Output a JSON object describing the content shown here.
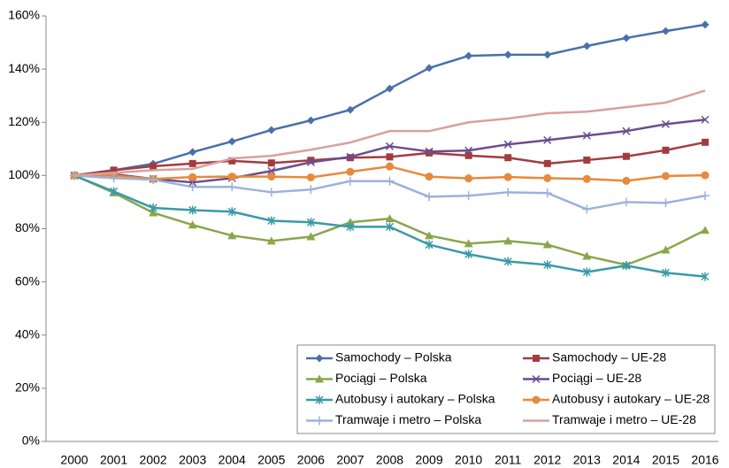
{
  "chart_data": {
    "type": "line",
    "categories": [
      "2000",
      "2001",
      "2002",
      "2003",
      "2004",
      "2005",
      "2006",
      "2007",
      "2008",
      "2009",
      "2010",
      "2011",
      "2012",
      "2013",
      "2014",
      "2015",
      "2016"
    ],
    "ylim": [
      0,
      160
    ],
    "yticks": [
      {
        "value": 0,
        "label": "0%"
      },
      {
        "value": 20,
        "label": "20%"
      },
      {
        "value": 40,
        "label": "40%"
      },
      {
        "value": 60,
        "label": "60%"
      },
      {
        "value": 80,
        "label": "80%"
      },
      {
        "value": 100,
        "label": "100%"
      },
      {
        "value": 120,
        "label": "120%"
      },
      {
        "value": 140,
        "label": "140%"
      },
      {
        "value": 160,
        "label": "160%"
      }
    ],
    "grid": false,
    "legend": "lower right",
    "series": [
      {
        "name": "Samochody – Polska",
        "color": "#4a70aa",
        "marker": "diamond",
        "values": [
          100,
          102,
          104.4,
          108.8,
          112.8,
          117.1,
          120.7,
          124.7,
          132.7,
          140.4,
          145,
          145.4,
          145.4,
          148.7,
          151.7,
          154.3,
          156.7
        ]
      },
      {
        "name": "Samochody – UE-28",
        "color": "#a33c3f",
        "marker": "square",
        "values": [
          100,
          102,
          103.5,
          104.5,
          105.5,
          104.7,
          105.7,
          106.7,
          107,
          108.5,
          107.5,
          106.7,
          104.5,
          105.8,
          107.2,
          109.5,
          112.5
        ]
      },
      {
        "name": "Pociągi – Polska",
        "color": "#8aa64b",
        "marker": "triangle",
        "values": [
          100,
          93.5,
          86,
          81.4,
          77.4,
          75.4,
          77,
          82.4,
          83.8,
          77.4,
          74.4,
          75.4,
          74,
          69.7,
          66.4,
          72,
          79.4
        ]
      },
      {
        "name": "Pociągi – UE-28",
        "color": "#6c4d8c",
        "marker": "x",
        "values": [
          100,
          100.5,
          98.7,
          97.4,
          99,
          101.7,
          105,
          107,
          111,
          109,
          109.4,
          111.7,
          113.3,
          115,
          116.7,
          119.3,
          121
        ]
      },
      {
        "name": "Autobusy i autokary – Polska",
        "color": "#3a9aa8",
        "marker": "star",
        "values": [
          100,
          94,
          87.8,
          87,
          86.4,
          83,
          82.4,
          80.7,
          80.7,
          74,
          70.4,
          67.7,
          66.4,
          63.7,
          66.1,
          63.4,
          62
        ]
      },
      {
        "name": "Autobusy i autokary – UE-28",
        "color": "#e8893b",
        "marker": "circle",
        "values": [
          100,
          100,
          98.7,
          99.4,
          99.6,
          99.6,
          99.3,
          101.4,
          103.4,
          99.6,
          98.9,
          99.4,
          99,
          98.7,
          98,
          99.8,
          100.1
        ]
      },
      {
        "name": "Tramwaje i metro – Polska",
        "color": "#9cb2d9",
        "marker": "plus",
        "values": [
          100,
          99,
          98.4,
          95.7,
          95.7,
          93.7,
          94.7,
          97.9,
          97.9,
          92,
          92.4,
          93.7,
          93.4,
          87.3,
          90,
          89.7,
          92.4
        ]
      },
      {
        "name": "Tramwaje i metro – UE-28",
        "color": "#d8a09f",
        "marker": "none",
        "values": [
          100,
          101,
          102,
          102.5,
          106.4,
          107.4,
          109.7,
          112.4,
          116.7,
          116.7,
          120,
          121.4,
          123.4,
          124,
          125.7,
          127.4,
          131.9
        ]
      }
    ]
  }
}
